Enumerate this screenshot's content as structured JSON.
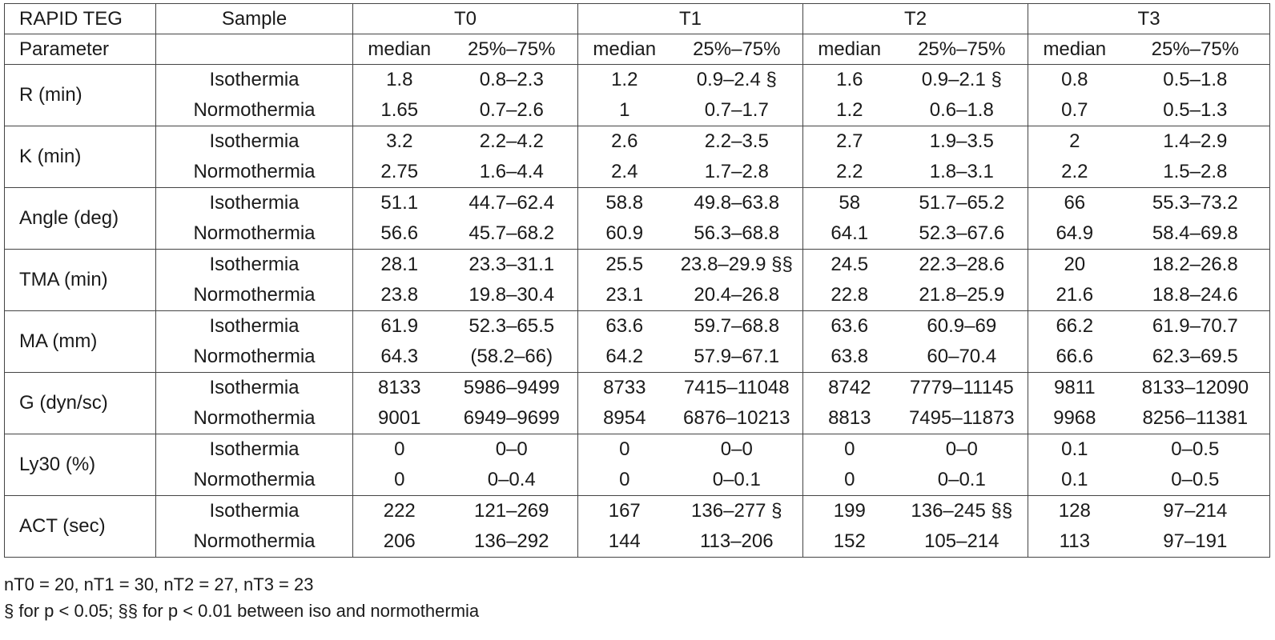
{
  "table": {
    "header": {
      "title": "RAPID TEG",
      "sample_label": "Sample",
      "timepoints": [
        "T0",
        "T1",
        "T2",
        "T3"
      ],
      "parameter_label": "Parameter",
      "median_label": "median",
      "range_label": "25%–75%"
    },
    "rows": [
      {
        "param": "R (min)",
        "iso": {
          "label": "Isothermia",
          "values": [
            "1.8",
            "0.8–2.3",
            "1.2",
            "0.9–2.4 §",
            "1.6",
            "0.9–2.1 §",
            "0.8",
            "0.5–1.8"
          ]
        },
        "normo": {
          "label": "Normothermia",
          "values": [
            "1.65",
            "0.7–2.6",
            "1",
            "0.7–1.7",
            "1.2",
            "0.6–1.8",
            "0.7",
            "0.5–1.3"
          ]
        }
      },
      {
        "param": "K (min)",
        "iso": {
          "label": "Isothermia",
          "values": [
            "3.2",
            "2.2–4.2",
            "2.6",
            "2.2–3.5",
            "2.7",
            "1.9–3.5",
            "2",
            "1.4–2.9"
          ]
        },
        "normo": {
          "label": "Normothermia",
          "values": [
            "2.75",
            "1.6–4.4",
            "2.4",
            "1.7–2.8",
            "2.2",
            "1.8–3.1",
            "2.2",
            "1.5–2.8"
          ]
        }
      },
      {
        "param": "Angle (deg)",
        "iso": {
          "label": "Isothermia",
          "values": [
            "51.1",
            "44.7–62.4",
            "58.8",
            "49.8–63.8",
            "58",
            "51.7–65.2",
            "66",
            "55.3–73.2"
          ]
        },
        "normo": {
          "label": "Normothermia",
          "values": [
            "56.6",
            "45.7–68.2",
            "60.9",
            "56.3–68.8",
            "64.1",
            "52.3–67.6",
            "64.9",
            "58.4–69.8"
          ]
        }
      },
      {
        "param": "TMA (min)",
        "iso": {
          "label": "Isothermia",
          "values": [
            "28.1",
            "23.3–31.1",
            "25.5",
            "23.8–29.9 §§",
            "24.5",
            "22.3–28.6",
            "20",
            "18.2–26.8"
          ]
        },
        "normo": {
          "label": "Normothermia",
          "values": [
            "23.8",
            "19.8–30.4",
            "23.1",
            "20.4–26.8",
            "22.8",
            "21.8–25.9",
            "21.6",
            "18.8–24.6"
          ]
        }
      },
      {
        "param": "MA (mm)",
        "iso": {
          "label": "Isothermia",
          "values": [
            "61.9",
            "52.3–65.5",
            "63.6",
            "59.7–68.8",
            "63.6",
            "60.9–69",
            "66.2",
            "61.9–70.7"
          ]
        },
        "normo": {
          "label": "Normothermia",
          "values": [
            "64.3",
            "(58.2–66)",
            "64.2",
            "57.9–67.1",
            "63.8",
            "60–70.4",
            "66.6",
            "62.3–69.5"
          ]
        }
      },
      {
        "param": "G (dyn/sc)",
        "iso": {
          "label": "Isothermia",
          "values": [
            "8133",
            "5986–9499",
            "8733",
            "7415–11048",
            "8742",
            "7779–11145",
            "9811",
            "8133–12090"
          ]
        },
        "normo": {
          "label": "Normothermia",
          "values": [
            "9001",
            "6949–9699",
            "8954",
            "6876–10213",
            "8813",
            "7495–11873",
            "9968",
            "8256–11381"
          ]
        }
      },
      {
        "param": "Ly30 (%)",
        "iso": {
          "label": "Isothermia",
          "values": [
            "0",
            "0–0",
            "0",
            "0–0",
            "0",
            "0–0",
            "0.1",
            "0–0.5"
          ]
        },
        "normo": {
          "label": "Normothermia",
          "values": [
            "0",
            "0–0.4",
            "0",
            "0–0.1",
            "0",
            "0–0.1",
            "0.1",
            "0–0.5"
          ]
        }
      },
      {
        "param": "ACT (sec)",
        "iso": {
          "label": "Isothermia",
          "values": [
            "222",
            "121–269",
            "167",
            "136–277 §",
            "199",
            "136–245 §§",
            "128",
            "97–214"
          ]
        },
        "normo": {
          "label": "Normothermia",
          "values": [
            "206",
            "136–292",
            "144",
            "113–206",
            "152",
            "105–214",
            "113",
            "97–191"
          ]
        }
      }
    ]
  },
  "footnotes": [
    "nT0 = 20, nT1 = 30, nT2 = 27, nT3 = 23",
    "§ for p < 0.05; §§ for p < 0.01 between iso and normothermia"
  ]
}
